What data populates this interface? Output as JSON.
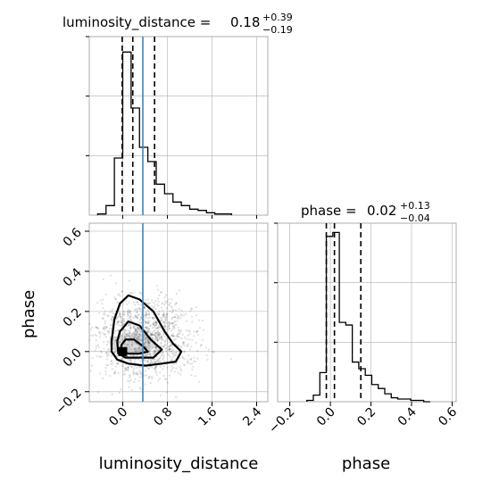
{
  "chart_data": {
    "type": "corner",
    "parameters": [
      "luminosity_distance",
      "phase"
    ],
    "truths": {
      "luminosity_distance": 0.36,
      "truth_color": "#4682b4"
    },
    "panels": [
      {
        "panel": "marginal-luminosity_distance",
        "type": "histogram-step",
        "title": {
          "prefix": "luminosity_distance = ",
          "median": "0.18",
          "plus": "+0.39",
          "minus": "−0.19"
        },
        "quantiles": [
          -0.01,
          0.18,
          0.57
        ],
        "xlim": [
          -0.6,
          2.6
        ],
        "bin_width": 0.15,
        "bin_starts": [
          -0.45,
          -0.3,
          -0.15,
          0.0,
          0.15,
          0.3,
          0.45,
          0.6,
          0.75,
          0.9,
          1.05,
          1.2,
          1.35,
          1.5,
          1.65,
          1.8
        ],
        "counts": [
          1,
          8,
          48,
          137,
          90,
          57,
          45,
          26,
          18,
          11,
          8,
          5,
          4,
          2,
          1,
          1
        ],
        "ymax": 150,
        "grid": true
      },
      {
        "panel": "marginal-phase",
        "type": "histogram-step",
        "title": {
          "prefix": "phase = ",
          "median": "0.02",
          "plus": "+0.13",
          "minus": "−0.04"
        },
        "quantiles": [
          -0.02,
          0.02,
          0.15
        ],
        "xlim": [
          -0.26,
          0.62
        ],
        "bin_width": 0.032,
        "bin_starts": [
          -0.116,
          -0.084,
          -0.052,
          -0.02,
          0.012,
          0.044,
          0.076,
          0.108,
          0.14,
          0.172,
          0.204,
          0.236,
          0.268,
          0.3,
          0.332,
          0.364,
          0.396,
          0.428,
          0.46
        ],
        "counts": [
          1,
          5,
          22,
          125,
          128,
          60,
          58,
          30,
          25,
          20,
          13,
          10,
          6,
          3,
          2,
          2,
          1,
          1,
          0
        ],
        "ymax": 135,
        "grid": true
      },
      {
        "panel": "joint-luminosity_distance-phase",
        "type": "contour-scatter",
        "xlabel": "luminosity_distance",
        "ylabel": "phase",
        "xlim": [
          -0.6,
          2.6
        ],
        "ylim": [
          -0.25,
          0.64
        ],
        "xticks": [
          "0.0",
          "0.8",
          "1.6",
          "2.4"
        ],
        "xtick_values": [
          0.0,
          0.8,
          1.6,
          2.4
        ],
        "yticks": [
          "−0.2",
          "0.0",
          "0.2",
          "0.4",
          "0.6"
        ],
        "ytick_values": [
          -0.2,
          0.0,
          0.2,
          0.4,
          0.6
        ],
        "peak": [
          0.0,
          0.0
        ],
        "contours": [
          [
            [
              -0.2,
              0.05
            ],
            [
              -0.15,
              0.16
            ],
            [
              -0.05,
              0.24
            ],
            [
              0.1,
              0.28
            ],
            [
              0.3,
              0.26
            ],
            [
              0.55,
              0.2
            ],
            [
              0.75,
              0.1
            ],
            [
              0.9,
              0.04
            ],
            [
              1.05,
              0.0
            ],
            [
              0.95,
              -0.05
            ],
            [
              0.7,
              -0.06
            ],
            [
              0.4,
              -0.07
            ],
            [
              0.1,
              -0.06
            ],
            [
              -0.1,
              -0.04
            ],
            [
              -0.2,
              0.0
            ],
            [
              -0.2,
              0.05
            ]
          ],
          [
            [
              -0.1,
              0.05
            ],
            [
              -0.05,
              0.1
            ],
            [
              0.1,
              0.15
            ],
            [
              0.3,
              0.13
            ],
            [
              0.5,
              0.06
            ],
            [
              0.7,
              0.01
            ],
            [
              0.55,
              -0.03
            ],
            [
              0.3,
              -0.03
            ],
            [
              0.05,
              -0.03
            ],
            [
              -0.08,
              -0.01
            ],
            [
              -0.1,
              0.05
            ]
          ],
          [
            [
              -0.03,
              0.03
            ],
            [
              0.05,
              0.06
            ],
            [
              0.2,
              0.06
            ],
            [
              0.35,
              0.03
            ],
            [
              0.45,
              0.0
            ],
            [
              0.3,
              -0.01
            ],
            [
              0.1,
              -0.01
            ],
            [
              -0.02,
              0.0
            ],
            [
              -0.03,
              0.03
            ]
          ]
        ],
        "grid": true
      },
      {
        "panel": "marginal-phase-axis",
        "xlabel": "phase",
        "xticks": [
          "−0.2",
          "0.0",
          "0.2",
          "0.4",
          "0.6"
        ],
        "xtick_values": [
          -0.2,
          0.0,
          0.2,
          0.4,
          0.6
        ]
      }
    ],
    "colors": {
      "line": "#000000",
      "grid": "#b0b0b0",
      "scatter": "#000000"
    }
  }
}
